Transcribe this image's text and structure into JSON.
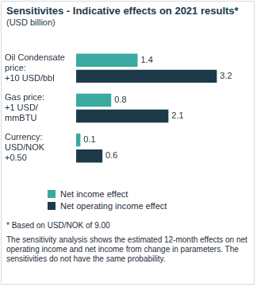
{
  "chart_data": {
    "type": "bar",
    "title": "Sensitivites - Indicative effects on 2021 results*",
    "subtitle": "(USD billion)",
    "orientation": "horizontal",
    "categories": [
      [
        "Oil Condensate",
        "price:",
        "+10 USD/bbl"
      ],
      [
        "Gas price:",
        "+1 USD/",
        "mmBTU"
      ],
      [
        "Currency:",
        "USD/NOK",
        "+0.50"
      ]
    ],
    "series": [
      {
        "name": "Net income effect",
        "color": "#3aa99f",
        "values": [
          1.4,
          0.8,
          0.1
        ]
      },
      {
        "name": "Net operating income effect",
        "color": "#1d3a4a",
        "values": [
          3.2,
          2.1,
          0.6
        ]
      }
    ],
    "xlim": [
      0,
      3.5
    ],
    "grid": false,
    "tick_labels": "y",
    "data_labels": true,
    "legend": "bottom",
    "annotations": [
      "* Based on USD/NOK of 9.00",
      "The sensitivity analysis shows the estimated 12-month effects on net operating income and net income from change in parameters. The sensitivities do not have the same probability."
    ]
  }
}
